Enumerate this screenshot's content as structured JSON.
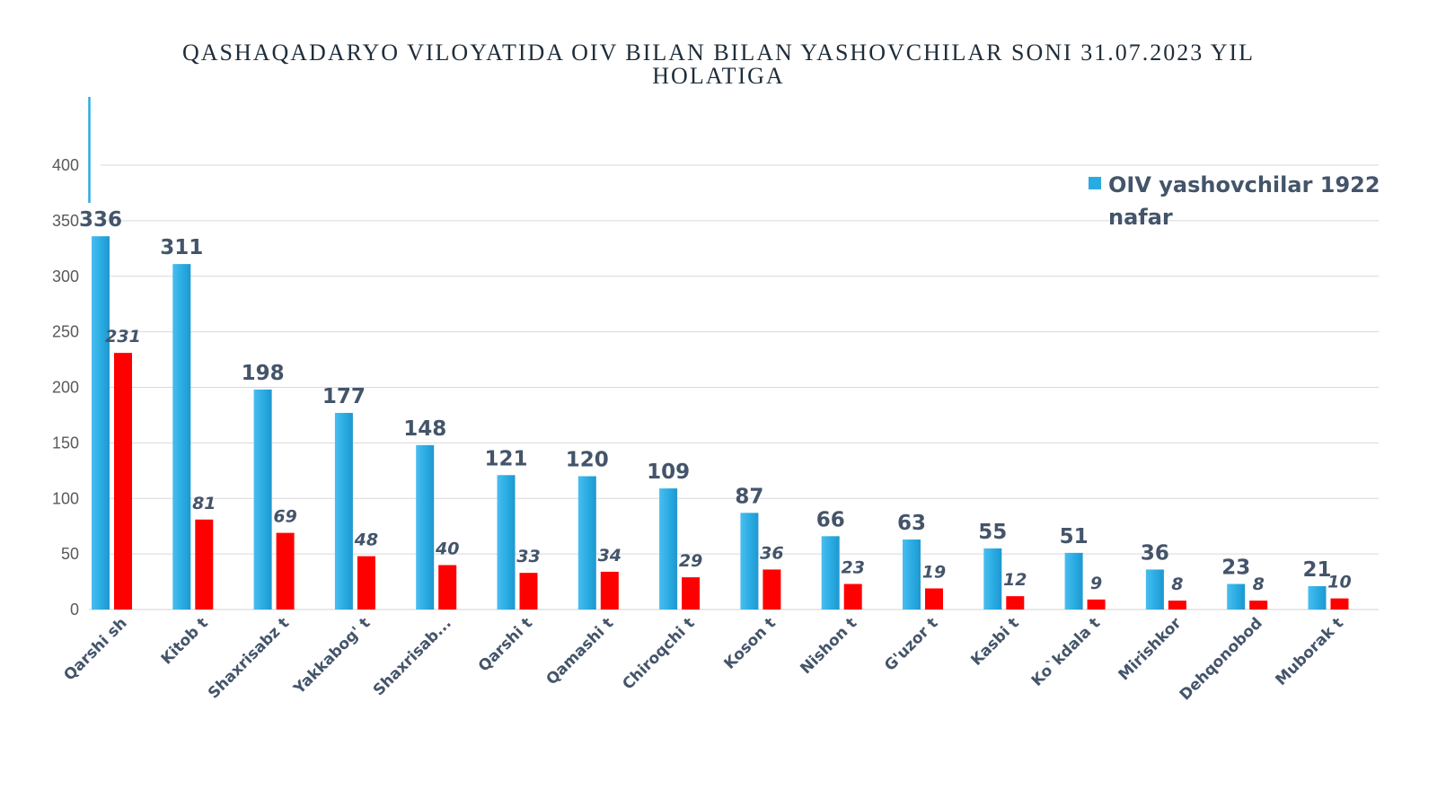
{
  "chart_data": {
    "type": "bar",
    "title": "QASHAQADARYO VILOYATIDA  OIV BILAN BILAN YASHOVCHILAR SONI 31.07.2023 YIL\nHOLATIGA",
    "categories": [
      "Qarshi sh",
      "Kitob t",
      "Shaxrisabz t",
      "Yakkabog' t",
      "Shaxrisab...",
      "Qarshi t",
      "Qamashi t",
      "Chiroqchi t",
      "Koson t",
      "Nishon t",
      "G'uzor t",
      "Kasbi t",
      "Ko`kdala t",
      "Mirishkor",
      "Dehqonobod",
      "Muborak t"
    ],
    "series": [
      {
        "name": "OIV yashovchilar 1922 nafar",
        "color": "#29abe2",
        "values": [
          336,
          311,
          198,
          177,
          148,
          121,
          120,
          109,
          87,
          66,
          63,
          55,
          51,
          36,
          23,
          21
        ]
      },
      {
        "color": "#ff0000",
        "values": [
          231,
          81,
          69,
          48,
          40,
          33,
          34,
          29,
          36,
          23,
          19,
          12,
          9,
          8,
          8,
          10
        ]
      }
    ],
    "yticks": [
      0,
      50,
      100,
      150,
      200,
      250,
      300,
      350,
      400
    ],
    "ylim": [
      0,
      400
    ],
    "legend": "top-right",
    "grid": true
  }
}
